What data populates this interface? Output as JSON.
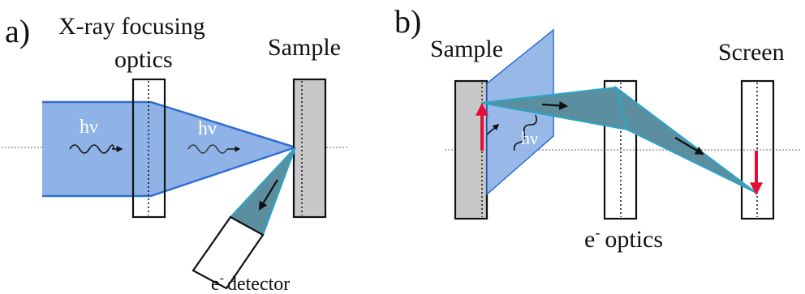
{
  "panel_a": {
    "panel_label": "a)",
    "title_line1": "X-ray focusing",
    "title_line2": "optics",
    "sample_label": "Sample",
    "photon_label_1": "hν",
    "photon_label_2": "hν",
    "detector_label": "detector",
    "detector_label_prefix": "e",
    "detector_label_sup": "-"
  },
  "panel_b": {
    "panel_label": "b)",
    "sample_label": "Sample",
    "screen_label": "Screen",
    "photon_label": "hν",
    "optics_label_prefix": "e",
    "optics_label_sup": "-",
    "optics_label": "optics"
  },
  "colors": {
    "beam_fill": "#8fb3e6",
    "beam_edge": "#2f6fd0",
    "electron_fill": "#5b8fa0",
    "electron_edge": "#2aa6c8",
    "sample_fill": "#c8c8c8",
    "arrow_red": "#e0103a",
    "axis_dotted": "#9a9a9a"
  }
}
